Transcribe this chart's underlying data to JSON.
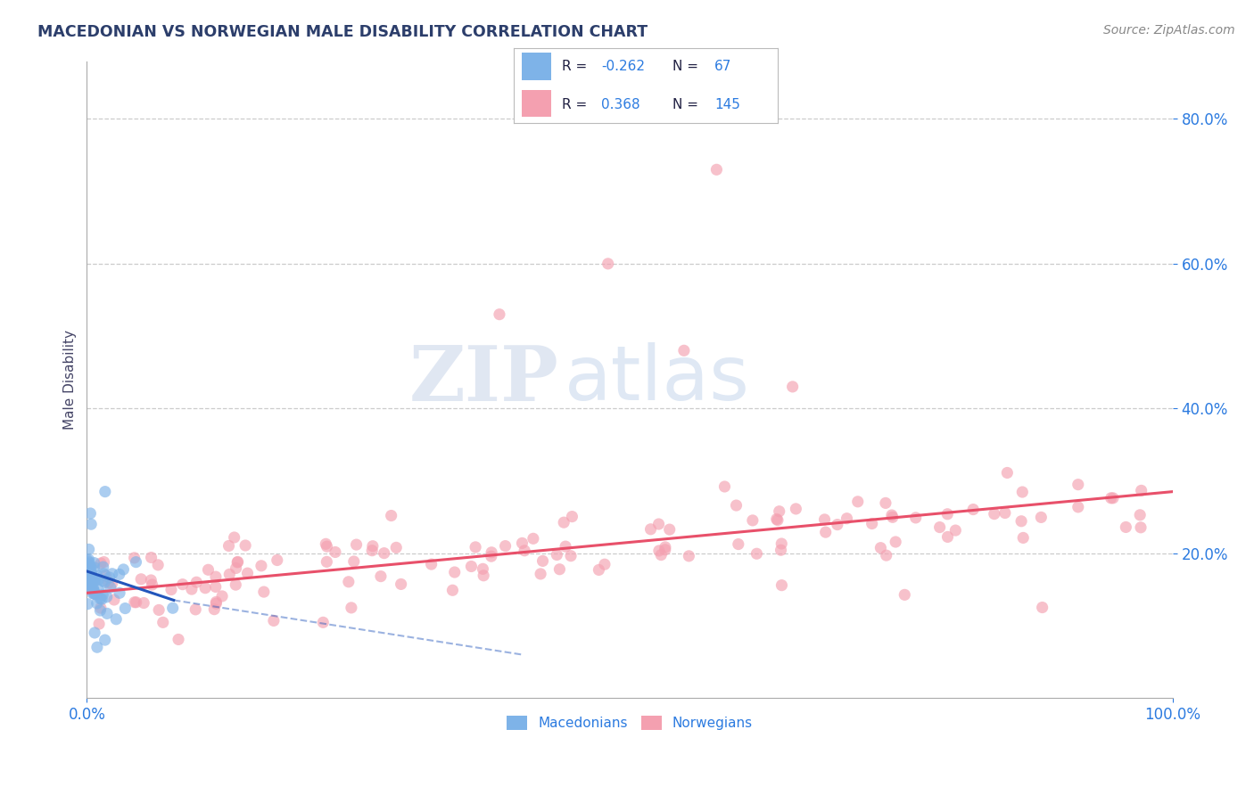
{
  "title": "MACEDONIAN VS NORWEGIAN MALE DISABILITY CORRELATION CHART",
  "source_text": "Source: ZipAtlas.com",
  "ylabel": "Male Disability",
  "xlim": [
    0.0,
    1.0
  ],
  "ylim": [
    0.0,
    0.88
  ],
  "yticks": [
    0.2,
    0.4,
    0.6,
    0.8
  ],
  "ytick_labels": [
    "20.0%",
    "40.0%",
    "60.0%",
    "80.0%"
  ],
  "xticks": [
    0.0,
    1.0
  ],
  "xtick_labels": [
    "0.0%",
    "100.0%"
  ],
  "mac_color": "#7eb3e8",
  "nor_color": "#f4a0b0",
  "mac_trend_color": "#2255bb",
  "nor_trend_color": "#e8506a",
  "mac_R": -0.262,
  "mac_N": 67,
  "nor_R": 0.368,
  "nor_N": 145,
  "background_color": "#ffffff",
  "grid_color": "#cccccc",
  "title_color": "#2c3e6b",
  "axis_label_color": "#444466",
  "tick_color": "#2c7be0",
  "nor_trend_start_y": 0.145,
  "nor_trend_end_y": 0.285,
  "mac_trend_start_y": 0.175,
  "mac_trend_end_y": 0.135,
  "mac_trend_dash_end_y": 0.06,
  "mac_trend_solid_end_x": 0.08,
  "mac_trend_dash_end_x": 0.4
}
